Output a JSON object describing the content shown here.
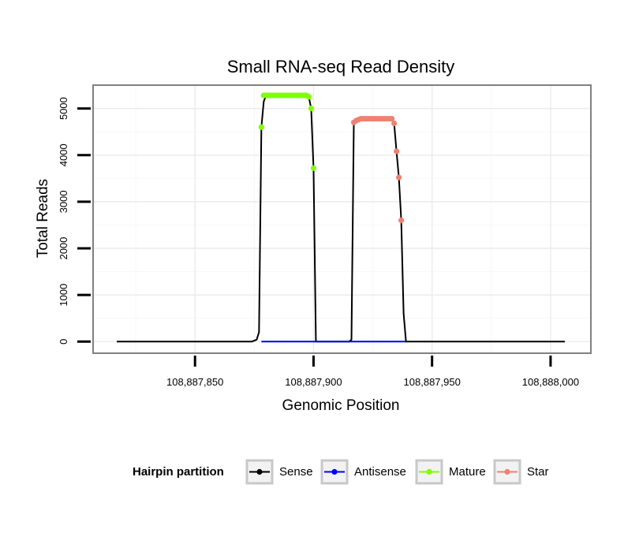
{
  "chart_data": {
    "type": "line",
    "title": "Small RNA-seq Read Density",
    "xlabel": "Genomic Position",
    "ylabel": "Total Reads",
    "xlim": [
      108887807,
      108888017
    ],
    "ylim": [
      -250,
      5500
    ],
    "x_ticks": [
      108887850,
      108887900,
      108887950,
      108888000
    ],
    "x_tick_labels": [
      "108,887,850",
      "108,887,900",
      "108,887,950",
      "108,888,000"
    ],
    "y_ticks": [
      0,
      1000,
      2000,
      3000,
      4000,
      5000
    ],
    "y_tick_labels": [
      "0",
      "1000",
      "2000",
      "3000",
      "4000",
      "5000"
    ],
    "legend": {
      "title": "Hairpin partition",
      "position": "bottom",
      "entries": [
        {
          "label": "Sense",
          "color": "#000000"
        },
        {
          "label": "Antisense",
          "color": "#0000ff"
        },
        {
          "label": "Mature",
          "color": "#7fff00"
        },
        {
          "label": "Star",
          "color": "#f08070"
        }
      ]
    },
    "series": [
      {
        "name": "Sense",
        "color": "#000000",
        "points": [
          [
            108887817,
            0
          ],
          [
            108887874,
            0
          ],
          [
            108887876,
            40
          ],
          [
            108887877,
            200
          ],
          [
            108887878,
            4600
          ],
          [
            108887879,
            5150
          ],
          [
            108887880,
            5280
          ],
          [
            108887897,
            5280
          ],
          [
            108887898,
            5250
          ],
          [
            108887899,
            5000
          ],
          [
            108887900,
            3720
          ],
          [
            108887901,
            0
          ],
          [
            108887915,
            0
          ],
          [
            108887916,
            40
          ],
          [
            108887917,
            4700
          ],
          [
            108887918,
            4740
          ],
          [
            108887919,
            4760
          ],
          [
            108887920,
            4780
          ],
          [
            108887933,
            4780
          ],
          [
            108887934,
            4680
          ],
          [
            108887935,
            4080
          ],
          [
            108887936,
            3520
          ],
          [
            108887937,
            2600
          ],
          [
            108887938,
            600
          ],
          [
            108887939,
            0
          ],
          [
            108888006,
            0
          ]
        ]
      },
      {
        "name": "Antisense",
        "color": "#0000ff",
        "points": [
          [
            108887878,
            0
          ],
          [
            108887939,
            0
          ]
        ]
      },
      {
        "name": "Mature",
        "color": "#7fff00",
        "points": [
          [
            108887878,
            4600
          ],
          [
            108887879,
            5280
          ],
          [
            108887880,
            5280
          ],
          [
            108887881,
            5280
          ],
          [
            108887882,
            5280
          ],
          [
            108887883,
            5280
          ],
          [
            108887884,
            5280
          ],
          [
            108887885,
            5280
          ],
          [
            108887886,
            5280
          ],
          [
            108887887,
            5280
          ],
          [
            108887888,
            5280
          ],
          [
            108887889,
            5280
          ],
          [
            108887890,
            5280
          ],
          [
            108887891,
            5280
          ],
          [
            108887892,
            5280
          ],
          [
            108887893,
            5280
          ],
          [
            108887894,
            5280
          ],
          [
            108887895,
            5280
          ],
          [
            108887896,
            5280
          ],
          [
            108887897,
            5280
          ],
          [
            108887898,
            5250
          ],
          [
            108887899,
            5000
          ],
          [
            108887900,
            3720
          ]
        ]
      },
      {
        "name": "Star",
        "color": "#f08070",
        "points": [
          [
            108887917,
            4700
          ],
          [
            108887918,
            4740
          ],
          [
            108887919,
            4760
          ],
          [
            108887920,
            4780
          ],
          [
            108887921,
            4780
          ],
          [
            108887922,
            4780
          ],
          [
            108887923,
            4780
          ],
          [
            108887924,
            4780
          ],
          [
            108887925,
            4780
          ],
          [
            108887926,
            4780
          ],
          [
            108887927,
            4780
          ],
          [
            108887928,
            4780
          ],
          [
            108887929,
            4780
          ],
          [
            108887930,
            4780
          ],
          [
            108887931,
            4780
          ],
          [
            108887932,
            4780
          ],
          [
            108887933,
            4780
          ],
          [
            108887934,
            4680
          ],
          [
            108887935,
            4080
          ],
          [
            108887936,
            3520
          ],
          [
            108887937,
            2600
          ]
        ]
      }
    ]
  }
}
